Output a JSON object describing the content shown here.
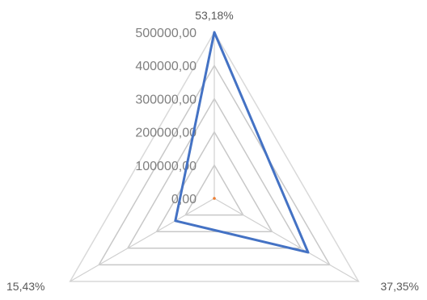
{
  "chart_data": {
    "type": "radar",
    "categories": [
      "53,18%",
      "37,35%",
      "15,43%"
    ],
    "ticks": [
      "0,00",
      "100000,00",
      "200000,00",
      "300000,00",
      "400000,00",
      "500000,00"
    ],
    "rmax": 500000,
    "grid": true,
    "series": [
      {
        "values": [
          500000,
          325000,
          135000
        ],
        "color": "#4472c4"
      },
      {
        "values": [
          0,
          0,
          0
        ],
        "color": "#ed7d31"
      }
    ]
  }
}
